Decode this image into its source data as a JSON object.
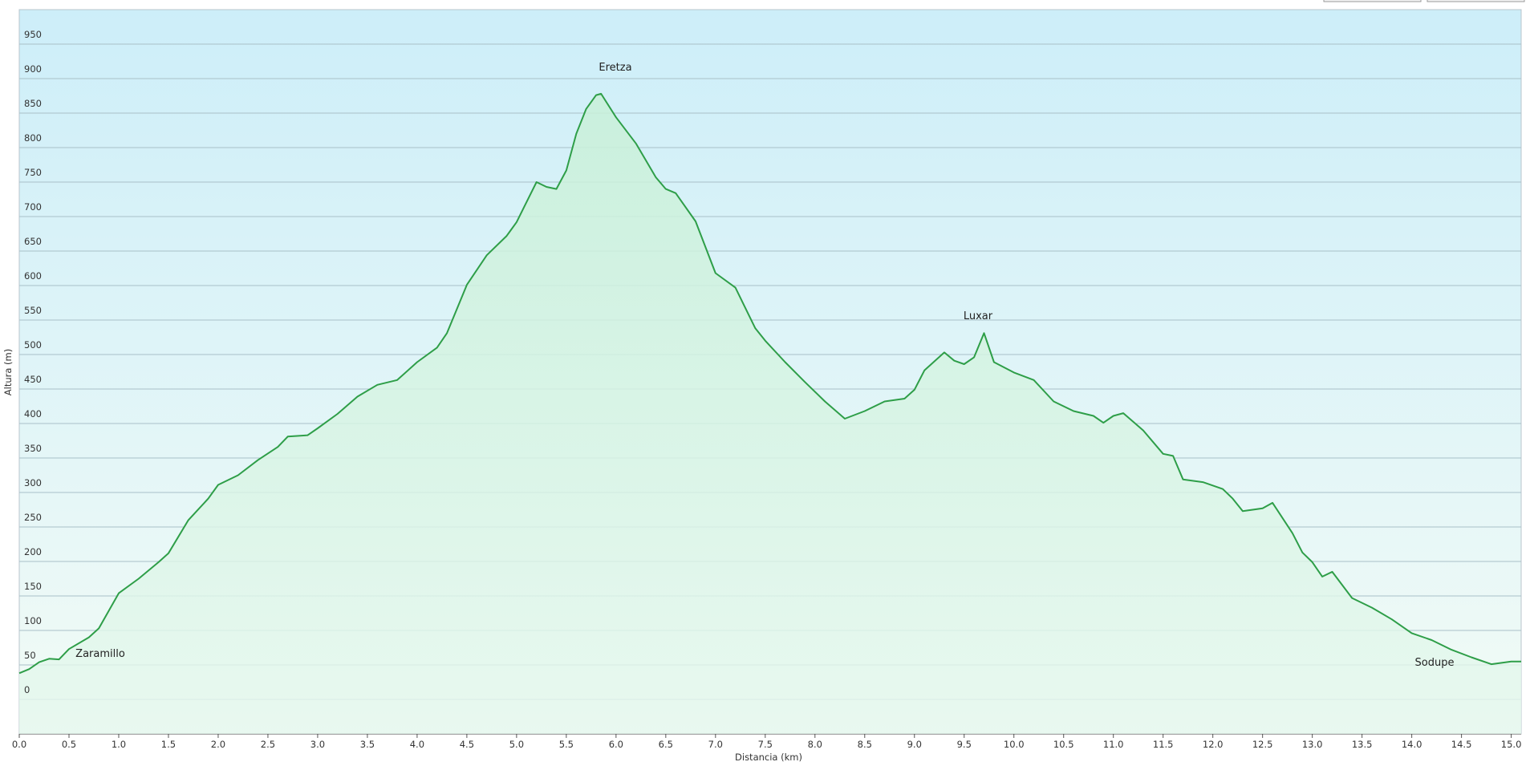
{
  "chart_data": {
    "type": "area",
    "x_label": "Distancia  (km)",
    "y_label": "Altura (m)",
    "annotations": [
      "Eretza",
      "Luxar",
      "Zaramillo",
      "Sodupe"
    ],
    "color": "#2e9e48",
    "grid": true,
    "xlim": [
      0,
      15.1
    ],
    "ylim": [
      -50,
      1000
    ],
    "xticks": [
      {
        "value": 0,
        "label": "0.0"
      },
      0.5,
      {
        "value": 1,
        "label": "1.0"
      },
      1.5,
      {
        "value": 2,
        "label": "2.0"
      },
      2.5,
      {
        "value": 3,
        "label": "3.0"
      },
      3.5,
      {
        "value": 4,
        "label": "4.0"
      },
      4.5,
      {
        "value": 5,
        "label": "5.0"
      },
      5.5,
      {
        "value": 6,
        "label": "6.0"
      },
      6.5,
      {
        "value": 7,
        "label": "7.0"
      },
      7.5,
      {
        "value": 8,
        "label": "8.0"
      },
      8.5,
      {
        "value": 9,
        "label": "9.0"
      },
      9.5,
      {
        "value": 10,
        "label": "10.0"
      },
      10.5,
      {
        "value": 11,
        "label": "11.0"
      },
      11.5,
      {
        "value": 12,
        "label": "12.0"
      },
      12.5,
      {
        "value": 13,
        "label": "13.0"
      },
      13.5,
      {
        "value": 14,
        "label": "14.0"
      },
      14.5,
      {
        "value": 15,
        "label": "15.0"
      }
    ],
    "yticks": [
      0,
      50,
      100,
      150,
      200,
      250,
      300,
      350,
      400,
      450,
      500,
      550,
      600,
      650,
      700,
      750,
      800,
      850,
      900,
      950
    ],
    "x": [
      0,
      0.1,
      0.2,
      0.3,
      0.4,
      0.5,
      0.7,
      0.8,
      1.0,
      1.2,
      1.4,
      1.5,
      1.7,
      1.9,
      2.0,
      2.2,
      2.4,
      2.6,
      2.7,
      2.9,
      3.0,
      3.2,
      3.4,
      3.6,
      3.8,
      4.0,
      4.2,
      4.3,
      4.5,
      4.7,
      4.9,
      5.0,
      5.1,
      5.2,
      5.3,
      5.4,
      5.5,
      5.6,
      5.7,
      5.8,
      5.85,
      6.0,
      6.2,
      6.4,
      6.5,
      6.6,
      6.8,
      7.0,
      7.2,
      7.4,
      7.5,
      7.7,
      7.9,
      8.1,
      8.3,
      8.5,
      8.7,
      8.9,
      9.0,
      9.1,
      9.3,
      9.4,
      9.5,
      9.6,
      9.7,
      9.8,
      10.0,
      10.2,
      10.4,
      10.6,
      10.8,
      10.9,
      11.0,
      11.1,
      11.3,
      11.5,
      11.6,
      11.7,
      11.9,
      12.1,
      12.2,
      12.3,
      12.5,
      12.6,
      12.8,
      12.9,
      13.0,
      13.1,
      13.2,
      13.4,
      13.6,
      13.8,
      14.0,
      14.2,
      14.4,
      14.6,
      14.8,
      15.0,
      15.1
    ],
    "values": [
      38,
      44,
      54,
      59,
      58,
      73,
      90,
      103,
      154,
      175,
      199,
      212,
      260,
      291,
      311,
      325,
      347,
      366,
      381,
      383,
      393,
      414,
      439,
      456,
      463,
      489,
      510,
      531,
      601,
      644,
      672,
      692,
      721,
      750,
      743,
      740,
      767,
      820,
      856,
      876,
      878,
      844,
      806,
      757,
      740,
      734,
      693,
      618,
      597,
      538,
      520,
      489,
      460,
      432,
      407,
      418,
      432,
      436,
      449,
      477,
      503,
      491,
      486,
      496,
      531,
      489,
      474,
      463,
      432,
      418,
      411,
      401,
      411,
      415,
      390,
      356,
      353,
      319,
      315,
      305,
      291,
      273,
      277,
      285,
      241,
      213,
      199,
      178,
      185,
      147,
      133,
      116,
      96,
      86,
      72,
      61,
      51,
      55,
      55
    ]
  }
}
